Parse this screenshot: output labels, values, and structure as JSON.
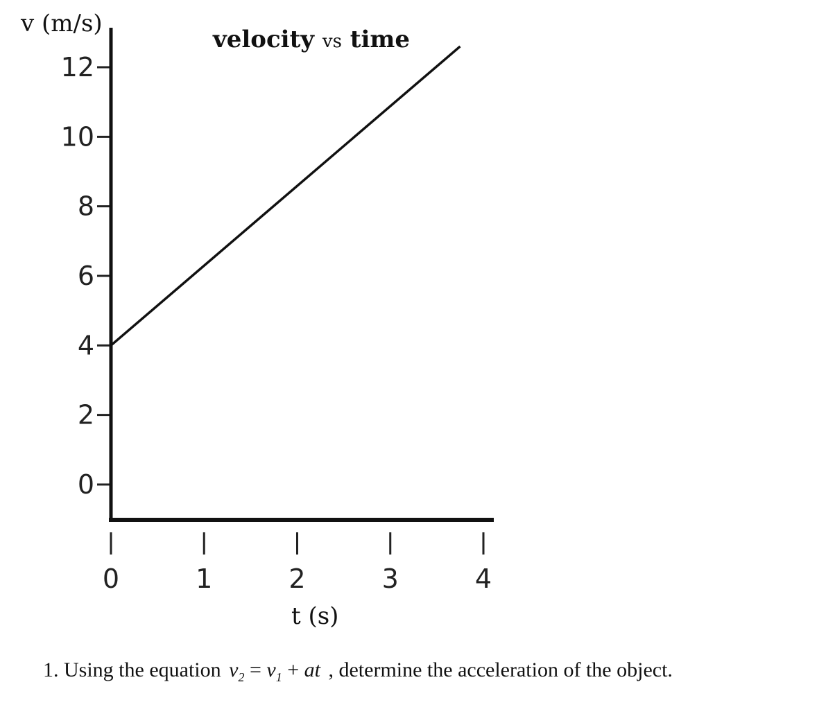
{
  "chart_data": {
    "type": "line",
    "title": "velocity vs time",
    "title_vs": "vs",
    "title_left": "velocity",
    "title_right": "time",
    "xlabel": "t (s)",
    "ylabel": "v (m/s)",
    "xlim": [
      0,
      4
    ],
    "ylim": [
      0,
      12
    ],
    "x_ticks": [
      "0",
      "1",
      "2",
      "3",
      "4"
    ],
    "y_ticks": [
      "0",
      "2",
      "4",
      "6",
      "8",
      "10",
      "12"
    ],
    "series": [
      {
        "x": [
          0,
          3.75
        ],
        "y": [
          4,
          12.6
        ]
      }
    ],
    "grid": false,
    "legend": "none"
  },
  "question": {
    "number": "1.",
    "prefix": "Using the equation",
    "v": "v",
    "sub2": "2",
    "sub1": "1",
    "equals": "=",
    "plus": "+",
    "at": "at",
    "suffix": ", determine the acceleration of the object."
  }
}
